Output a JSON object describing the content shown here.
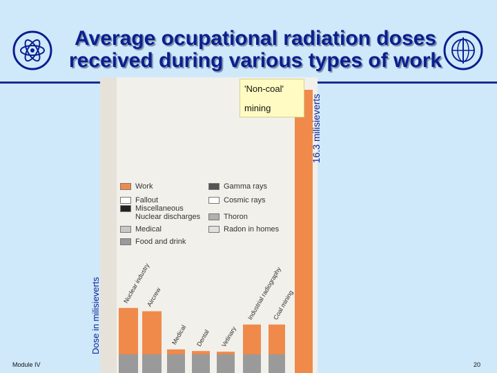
{
  "slide": {
    "title_line1": "Average ocupational radiation doses",
    "title_line2": "received during various types of work",
    "footer_left": "Module IV",
    "page_number": "20",
    "colors": {
      "background": "#cfe9fb",
      "title": "#0a1f8f",
      "work_bar": "#f08a4b"
    },
    "icons": [
      "iaea-atom-emblem",
      "who-emblem"
    ]
  },
  "chart_data": {
    "type": "bar",
    "ylabel": "Dose in milisieverts",
    "legend": [
      {
        "label": "Work",
        "color": "#f08a4b"
      },
      {
        "label": "Fallout",
        "color": "#ffffff"
      },
      {
        "label": "Miscellaneous",
        "color": "#222222"
      },
      {
        "label": "Nuclear discharges",
        "color": "#222222"
      },
      {
        "label": "Medical",
        "color": "#c8c8c8"
      },
      {
        "label": "Food and drink",
        "color": "#9a9a9a"
      },
      {
        "label": "Gamma rays",
        "color": "#555555"
      },
      {
        "label": "Cosmic rays",
        "color": "#ffffff"
      },
      {
        "label": "Thoron",
        "color": "#b0b0b0"
      },
      {
        "label": "Radon in homes",
        "color": "#e0e0e0"
      }
    ],
    "categories": [
      "Nuclear industry",
      "Aircrew",
      "Medical",
      "Dental",
      "Vetinary",
      "Industrial radiography",
      "Coal mining",
      "'Non-coal' mining"
    ],
    "values": [
      1.4,
      1.3,
      0.15,
      0.1,
      0.08,
      0.9,
      0.9,
      16.3
    ],
    "highlight": {
      "category": "'Non-coal' mining",
      "value_label": "16.3 milisieverts",
      "callout_line1": "'Non-coal'",
      "callout_line2": "mining"
    }
  }
}
